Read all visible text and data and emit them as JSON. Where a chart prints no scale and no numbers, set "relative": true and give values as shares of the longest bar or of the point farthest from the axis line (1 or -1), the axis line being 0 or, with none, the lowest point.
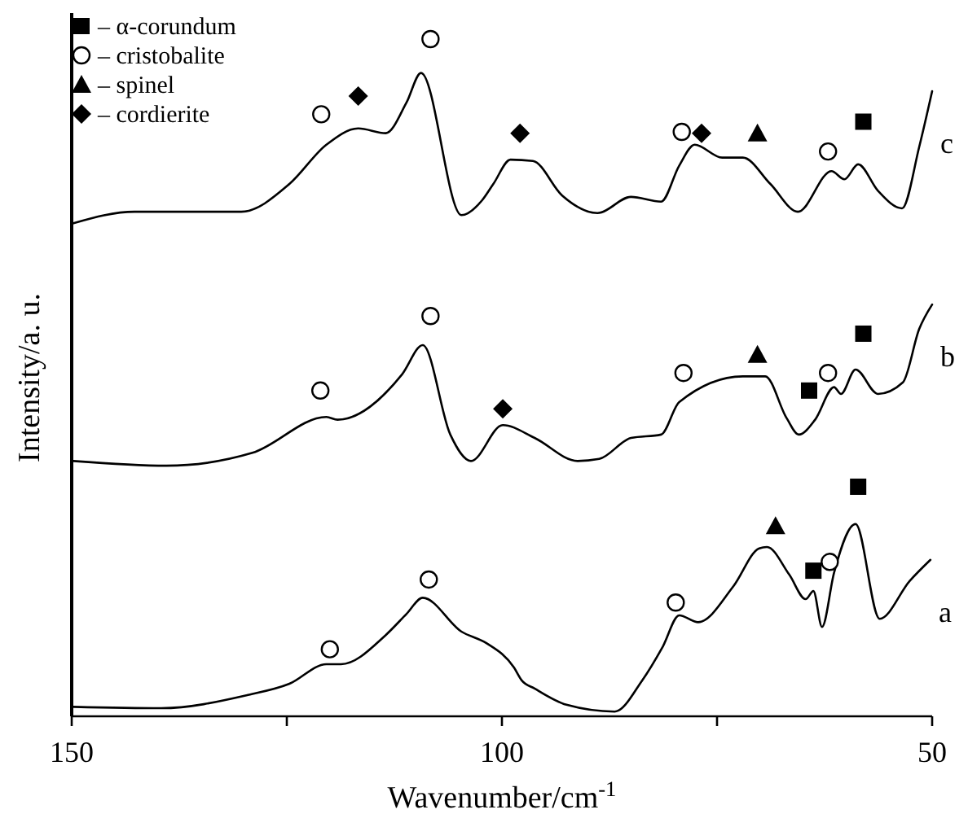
{
  "chart_data": {
    "type": "line",
    "relative": true,
    "xlabel": "Wavenumber/cm$^{-1}$",
    "ylabel": "Intensity/a. u.",
    "xlim": [
      150,
      50
    ],
    "xticks": [
      150,
      {
        "value": 125,
        "label": null
      },
      100,
      {
        "value": 75,
        "label": null
      },
      50
    ],
    "tick_labels": "x",
    "grid": false,
    "legend": "top left",
    "series": [
      {
        "color": "#000000",
        "marker": "none",
        "x": [
          149.8,
          139.6,
          129.7,
          124.7,
          120.4,
          118.7,
          113.5,
          111.1,
          109.2,
          104.7,
          101.8,
          98.6,
          97.7,
          96.2,
          92.5,
          86.9,
          83.7,
          81.3,
          79.4,
          77.2,
          73.1,
          70.1,
          69.2,
          66.6,
          64.7,
          63.8,
          62.8,
          61.4,
          58.9,
          56.1,
          52.6,
          50.2
        ],
        "values": [
          0.014,
          0.012,
          0.031,
          0.048,
          0.077,
          0.077,
          0.12,
          0.151,
          0.175,
          0.125,
          0.108,
          0.072,
          0.053,
          0.041,
          0.017,
          0.007,
          0.053,
          0.103,
          0.149,
          0.139,
          0.192,
          0.248,
          0.25,
          0.209,
          0.173,
          0.185,
          0.132,
          0.212,
          0.284,
          0.144,
          0.2,
          0.231
        ]
      },
      {
        "color": "#000000",
        "marker": "none",
        "x": [
          149.8,
          139,
          129,
          120.4,
          119.1,
          111.6,
          109.2,
          106,
          103.6,
          99.9,
          96.2,
          91.2,
          88.7,
          85,
          81.5,
          79.4,
          72,
          69.4,
          66.9,
          65.5,
          63.6,
          61.4,
          60.6,
          58.9,
          56.3,
          53.4,
          51.5,
          50
        ],
        "values": [
          0.377,
          0.37,
          0.389,
          0.442,
          0.438,
          0.505,
          0.548,
          0.416,
          0.377,
          0.43,
          0.411,
          0.377,
          0.38,
          0.411,
          0.416,
          0.464,
          0.502,
          0.502,
          0.44,
          0.416,
          0.438,
          0.486,
          0.476,
          0.512,
          0.476,
          0.493,
          0.572,
          0.608
        ]
      },
      {
        "color": "#000000",
        "marker": "none",
        "x": [
          149.8,
          142.7,
          130.3,
          124.7,
          120.4,
          116.7,
          113.5,
          111.1,
          109.4,
          104.7,
          102.3,
          101,
          99,
          96.4,
          93,
          88.9,
          85,
          81.5,
          79.4,
          77.6,
          74.4,
          72,
          68.8,
          65.6,
          61.7,
          60.2,
          58.6,
          56.3,
          53.5,
          51.5,
          50
        ],
        "values": [
          0.728,
          0.745,
          0.745,
          0.786,
          0.844,
          0.868,
          0.861,
          0.906,
          0.95,
          0.74,
          0.762,
          0.786,
          0.822,
          0.82,
          0.769,
          0.743,
          0.767,
          0.76,
          0.813,
          0.844,
          0.825,
          0.825,
          0.786,
          0.745,
          0.805,
          0.793,
          0.815,
          0.776,
          0.75,
          0.841,
          0.923
        ]
      },
      {
        "type": "scatter",
        "name": "– α-corundum",
        "color": "#000000",
        "marker": "square",
        "x": [
          58.0,
          58.0,
          64.3,
          58.6,
          63.8
        ],
        "values": [
          0.878,
          0.565,
          0.481,
          0.339,
          0.215
        ]
      },
      {
        "type": "scatter",
        "name": "– cristobalite",
        "color": "#000000",
        "marker": "circle",
        "x": [
          121,
          108.3,
          79.1,
          62.1,
          121.1,
          108.3,
          78.9,
          62.1,
          120,
          108.5,
          79.8,
          61.9
        ],
        "values": [
          0.889,
          1,
          0.863,
          0.834,
          0.481,
          0.591,
          0.507,
          0.507,
          0.099,
          0.202,
          0.168,
          0.228
        ]
      },
      {
        "type": "scatter",
        "name": "– spinel",
        "color": "#000000",
        "marker": "triangle",
        "x": [
          70.3,
          70.3,
          68.2
        ],
        "values": [
          0.861,
          0.534,
          0.281
        ]
      },
      {
        "type": "scatter",
        "name": "– cordierite",
        "color": "#000000",
        "marker": "diamond",
        "x": [
          116.7,
          97.9,
          76.8,
          99.9
        ],
        "values": [
          0.916,
          0.861,
          0.861,
          0.454
        ]
      }
    ],
    "annotations": [
      "a",
      "b",
      "c"
    ]
  }
}
